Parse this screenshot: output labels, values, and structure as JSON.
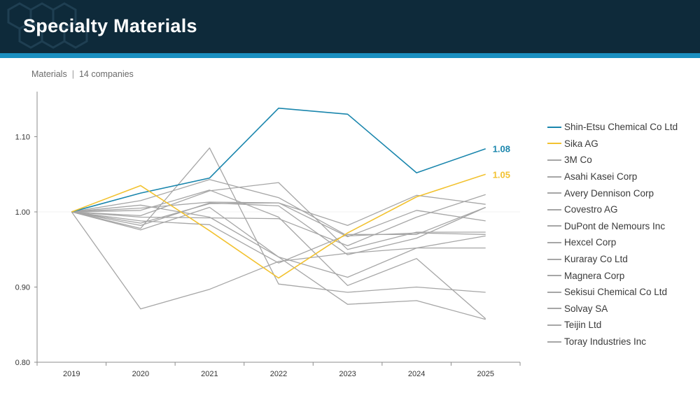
{
  "header": {
    "title": "Specialty Materials"
  },
  "subtitle": {
    "sector": "Materials",
    "separator": "|",
    "count": "14 companies"
  },
  "colors": {
    "highlight_blue": "#1a86ad",
    "highlight_yellow": "#f2c230",
    "default_series": "#a6a6a6",
    "header_bg": "#0e2a3a",
    "accent": "#1a8fc0"
  },
  "chart_data": {
    "type": "line",
    "title": "",
    "xlabel": "",
    "ylabel": "",
    "x": [
      "2019",
      "2020",
      "2021",
      "2022",
      "2023",
      "2024",
      "2025"
    ],
    "ylim": [
      0.8,
      1.16
    ],
    "yticks": [
      "0.80",
      "0.90",
      "1.00",
      "1.10"
    ],
    "grid": false,
    "legend_position": "right",
    "series": [
      {
        "name": "Shin-Etsu Chemical Co Ltd",
        "values": [
          1.0,
          1.025,
          1.045,
          1.138,
          1.13,
          1.052,
          1.084
        ],
        "highlight": "blue",
        "end_label": "1.08"
      },
      {
        "name": "Sika AG",
        "values": [
          1.0,
          1.035,
          0.975,
          0.912,
          0.972,
          1.02,
          1.05
        ],
        "highlight": "yellow",
        "end_label": "1.05"
      },
      {
        "name": "3M Co",
        "values": [
          1.0,
          0.978,
          1.085,
          0.904,
          0.893,
          0.9,
          0.893
        ]
      },
      {
        "name": "Asahi Kasei Corp",
        "values": [
          1.0,
          0.871,
          0.897,
          0.934,
          0.945,
          0.952,
          0.952
        ]
      },
      {
        "name": "Avery Dennison Corp",
        "values": [
          1.0,
          1.015,
          1.043,
          1.019,
          0.968,
          0.972,
          0.97
        ]
      },
      {
        "name": "Covestro AG",
        "values": [
          1.0,
          0.995,
          1.028,
          1.039,
          0.95,
          0.973,
          0.973
        ]
      },
      {
        "name": "DuPont de Nemours Inc",
        "values": [
          1.0,
          1.005,
          1.013,
          1.012,
          0.967,
          1.002,
          0.988
        ]
      },
      {
        "name": "Hexcel Corp",
        "values": [
          1.0,
          0.985,
          1.011,
          1.012,
          0.982,
          1.022,
          1.01
        ]
      },
      {
        "name": "Kuraray Co Ltd",
        "values": [
          1.0,
          0.993,
          0.992,
          0.991,
          0.955,
          0.993,
          1.023
        ]
      },
      {
        "name": "Magnera Corp",
        "values": [
          1.0,
          1.009,
          0.993,
          0.94,
          0.877,
          0.882,
          0.857
        ]
      },
      {
        "name": "Sekisui Chemical Co Ltd",
        "values": [
          1.0,
          0.982,
          1.012,
          1.008,
          0.943,
          0.965,
          1.006
        ]
      },
      {
        "name": "Solvay SA",
        "values": [
          1.0,
          1.002,
          1.029,
          0.993,
          0.902,
          0.938,
          0.858
        ]
      },
      {
        "name": "Teijin Ltd",
        "values": [
          1.0,
          0.976,
          1.006,
          0.94,
          0.913,
          0.952,
          0.968
        ]
      },
      {
        "name": "Toray Industries Inc",
        "values": [
          1.0,
          0.988,
          0.983,
          0.932,
          0.97,
          0.97,
          1.006
        ]
      }
    ]
  }
}
